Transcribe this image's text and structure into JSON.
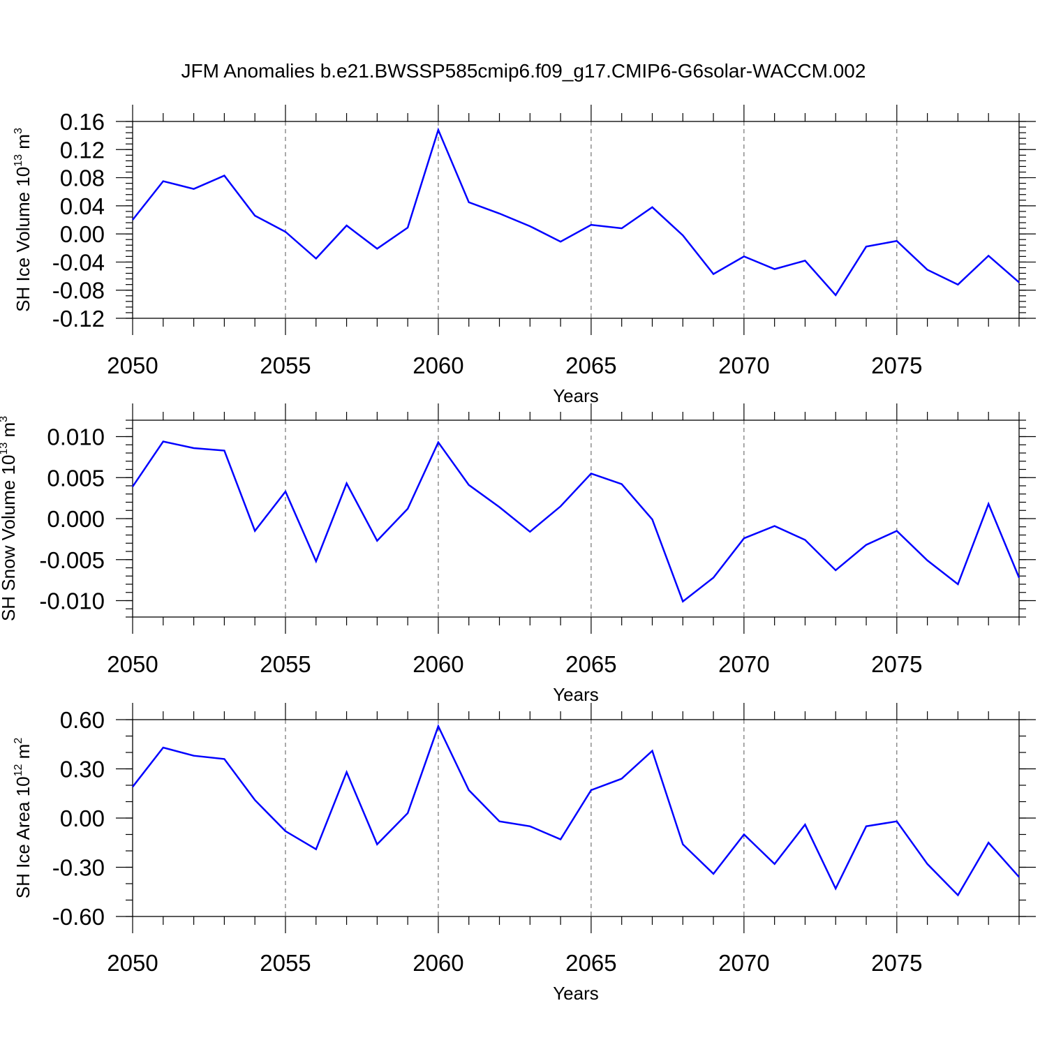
{
  "figure": {
    "title": "JFM Anomalies b.e21.BWSSP585cmip6.f09_g17.CMIP6-G6solar-WACCM.002"
  },
  "chart_data": [
    {
      "type": "line",
      "title": "",
      "xlabel": "Years",
      "ylabel": {
        "main": "SH Ice Volume 10",
        "sup": "13",
        "unit": " m",
        "unit_sup": "3"
      },
      "xlim": [
        2050,
        2079
      ],
      "ylim": [
        -0.12,
        0.16
      ],
      "xticks": [
        2050,
        2055,
        2060,
        2065,
        2070,
        2075
      ],
      "xtick_labels": [
        "2050",
        "2055",
        "2060",
        "2065",
        "2070",
        "2075"
      ],
      "yticks": [
        -0.12,
        -0.08,
        -0.04,
        0.0,
        0.04,
        0.08,
        0.12,
        0.16
      ],
      "ytick_labels": [
        "-0.12",
        "-0.08",
        "-0.04",
        "0.00",
        "0.04",
        "0.08",
        "0.12",
        "0.16"
      ],
      "ytick_step_minor": 0.008,
      "grid": "vertical dashed at major x ticks",
      "color": "#0000ff",
      "series": [
        {
          "name": "SH Ice Volume",
          "x": [
            2050,
            2051,
            2052,
            2053,
            2054,
            2055,
            2056,
            2057,
            2058,
            2059,
            2060,
            2061,
            2062,
            2063,
            2064,
            2065,
            2066,
            2067,
            2068,
            2069,
            2070,
            2071,
            2072,
            2073,
            2074,
            2075,
            2076,
            2077,
            2078,
            2079
          ],
          "values": [
            0.02,
            0.075,
            0.064,
            0.083,
            0.026,
            0.003,
            -0.035,
            0.012,
            -0.021,
            0.009,
            0.148,
            0.045,
            0.029,
            0.011,
            -0.011,
            0.013,
            0.008,
            0.038,
            -0.002,
            -0.057,
            -0.032,
            -0.05,
            -0.038,
            -0.087,
            -0.018,
            -0.01,
            -0.051,
            -0.072,
            -0.031,
            -0.069
          ]
        }
      ]
    },
    {
      "type": "line",
      "title": "",
      "xlabel": "Years",
      "ylabel": {
        "main": "SH Snow Volume 10",
        "sup": "13",
        "unit": " m",
        "unit_sup": "3"
      },
      "xlim": [
        2050,
        2079
      ],
      "ylim": [
        -0.012,
        0.012
      ],
      "xticks": [
        2050,
        2055,
        2060,
        2065,
        2070,
        2075
      ],
      "xtick_labels": [
        "2050",
        "2055",
        "2060",
        "2065",
        "2070",
        "2075"
      ],
      "yticks": [
        -0.01,
        -0.005,
        0.0,
        0.005,
        0.01
      ],
      "ytick_labels": [
        "-0.010",
        "-0.005",
        "0.000",
        "0.005",
        "0.010"
      ],
      "ytick_step_minor": 0.001,
      "grid": "vertical dashed at major x ticks",
      "color": "#0000ff",
      "series": [
        {
          "name": "SH Snow Volume",
          "x": [
            2050,
            2051,
            2052,
            2053,
            2054,
            2055,
            2056,
            2057,
            2058,
            2059,
            2060,
            2061,
            2062,
            2063,
            2064,
            2065,
            2066,
            2067,
            2068,
            2069,
            2070,
            2071,
            2072,
            2073,
            2074,
            2075,
            2076,
            2077,
            2078,
            2079
          ],
          "values": [
            0.0039,
            0.0094,
            0.0086,
            0.0083,
            -0.0015,
            0.0033,
            -0.0052,
            0.0043,
            -0.0027,
            0.0012,
            0.0093,
            0.0041,
            0.0014,
            -0.0016,
            0.0015,
            0.0055,
            0.0042,
            -0.0001,
            -0.0101,
            -0.0072,
            -0.0024,
            -0.0009,
            -0.0026,
            -0.0063,
            -0.0032,
            -0.0015,
            -0.0051,
            -0.008,
            0.0018,
            -0.0072
          ]
        }
      ]
    },
    {
      "type": "line",
      "title": "",
      "xlabel": "Years",
      "ylabel": {
        "main": "SH Ice Area 10",
        "sup": "12",
        "unit": " m",
        "unit_sup": "2"
      },
      "xlim": [
        2050,
        2079
      ],
      "ylim": [
        -0.6,
        0.6
      ],
      "xticks": [
        2050,
        2055,
        2060,
        2065,
        2070,
        2075
      ],
      "xtick_labels": [
        "2050",
        "2055",
        "2060",
        "2065",
        "2070",
        "2075"
      ],
      "yticks": [
        -0.6,
        -0.3,
        0.0,
        0.3,
        0.6
      ],
      "ytick_labels": [
        "-0.60",
        "-0.30",
        "0.00",
        "0.30",
        "0.60"
      ],
      "ytick_step_minor": 0.1,
      "grid": "vertical dashed at major x ticks",
      "color": "#0000ff",
      "series": [
        {
          "name": "SH Ice Area",
          "x": [
            2050,
            2051,
            2052,
            2053,
            2054,
            2055,
            2056,
            2057,
            2058,
            2059,
            2060,
            2061,
            2062,
            2063,
            2064,
            2065,
            2066,
            2067,
            2068,
            2069,
            2070,
            2071,
            2072,
            2073,
            2074,
            2075,
            2076,
            2077,
            2078,
            2079
          ],
          "values": [
            0.19,
            0.43,
            0.38,
            0.36,
            0.11,
            -0.08,
            -0.19,
            0.28,
            -0.16,
            0.03,
            0.56,
            0.17,
            -0.02,
            -0.05,
            -0.13,
            0.17,
            0.24,
            0.41,
            -0.16,
            -0.34,
            -0.1,
            -0.28,
            -0.04,
            -0.43,
            -0.05,
            -0.02,
            -0.28,
            -0.47,
            -0.15,
            -0.36
          ]
        }
      ]
    }
  ]
}
